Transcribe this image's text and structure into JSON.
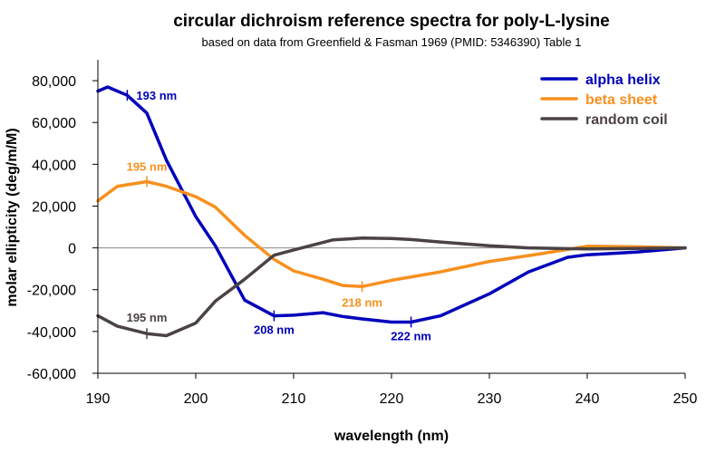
{
  "chart_data": {
    "type": "line",
    "title": "circular dichroism reference spectra for poly-L-lysine",
    "subtitle": "based on data from Greenfield & Fasman 1969 (PMID: 5346390) Table 1",
    "xlabel": "wavelength (nm)",
    "ylabel": "molar ellipticity (deg/m/M)",
    "xlim": [
      190,
      250
    ],
    "ylim": [
      -60000,
      90000
    ],
    "x_ticks": [
      190,
      200,
      210,
      220,
      230,
      240,
      250
    ],
    "x_tick_labels": [
      "190",
      "200",
      "210",
      "220",
      "230",
      "240",
      "250"
    ],
    "y_ticks": [
      -60000,
      -40000,
      -20000,
      0,
      20000,
      40000,
      60000,
      80000
    ],
    "y_tick_labels": [
      "-60,000",
      "-40,000",
      "-20,000",
      "0",
      "20,000",
      "40,000",
      "60,000",
      "80,000"
    ],
    "grid": false,
    "zero_line": true,
    "legend_position": "top-right",
    "series": [
      {
        "name": "alpha helix",
        "color": "#0000bb",
        "x": [
          190,
          191,
          193,
          195,
          197,
          200,
          202,
          205,
          208,
          210,
          213,
          215,
          217,
          220,
          222,
          225,
          230,
          234,
          238,
          240,
          245,
          250
        ],
        "y": [
          75000,
          77000,
          73000,
          64500,
          42000,
          15000,
          1000,
          -25000,
          -32500,
          -32200,
          -31000,
          -32800,
          -34000,
          -35500,
          -35500,
          -32500,
          -22000,
          -11500,
          -4500,
          -3300,
          -2000,
          0
        ]
      },
      {
        "name": "beta sheet",
        "color": "#f7901e",
        "x": [
          190,
          192,
          195,
          197,
          200,
          202,
          205,
          208,
          210,
          213,
          215,
          217,
          220,
          225,
          230,
          235,
          240,
          245,
          250
        ],
        "y": [
          22500,
          29500,
          31700,
          29500,
          24500,
          19500,
          6000,
          -5500,
          -11000,
          -15000,
          -18000,
          -18500,
          -15500,
          -11500,
          -6500,
          -3000,
          800,
          500,
          0
        ]
      },
      {
        "name": "random coil",
        "color": "#4a4244",
        "x": [
          190,
          192,
          195,
          197,
          200,
          202,
          205,
          208,
          210,
          214,
          217,
          220,
          222,
          225,
          230,
          234,
          240,
          245,
          250
        ],
        "y": [
          -32500,
          -37500,
          -41000,
          -42000,
          -36000,
          -25500,
          -15000,
          -3500,
          -1000,
          3800,
          4700,
          4500,
          4000,
          2800,
          1000,
          0,
          -500,
          -300,
          0
        ]
      }
    ],
    "annotations": [
      {
        "text": "193 nm",
        "series": 0,
        "x": 193,
        "y": 73000,
        "dx": 10,
        "dy": 5,
        "anchor": "start"
      },
      {
        "text": "208 nm",
        "series": 0,
        "x": 208,
        "y": -32500,
        "dx": 0,
        "dy": 20,
        "anchor": "middle"
      },
      {
        "text": "222 nm",
        "series": 0,
        "x": 222,
        "y": -35500,
        "dx": 0,
        "dy": 20,
        "anchor": "middle"
      },
      {
        "text": "195 nm",
        "series": 1,
        "x": 195,
        "y": 31700,
        "dx": 0,
        "dy": -12,
        "anchor": "middle"
      },
      {
        "text": "218 nm",
        "series": 1,
        "x": 217,
        "y": -18500,
        "dx": 0,
        "dy": 22,
        "anchor": "middle"
      },
      {
        "text": "195 nm",
        "series": 2,
        "x": 195,
        "y": -41000,
        "dx": 0,
        "dy": -13,
        "anchor": "middle"
      }
    ]
  }
}
